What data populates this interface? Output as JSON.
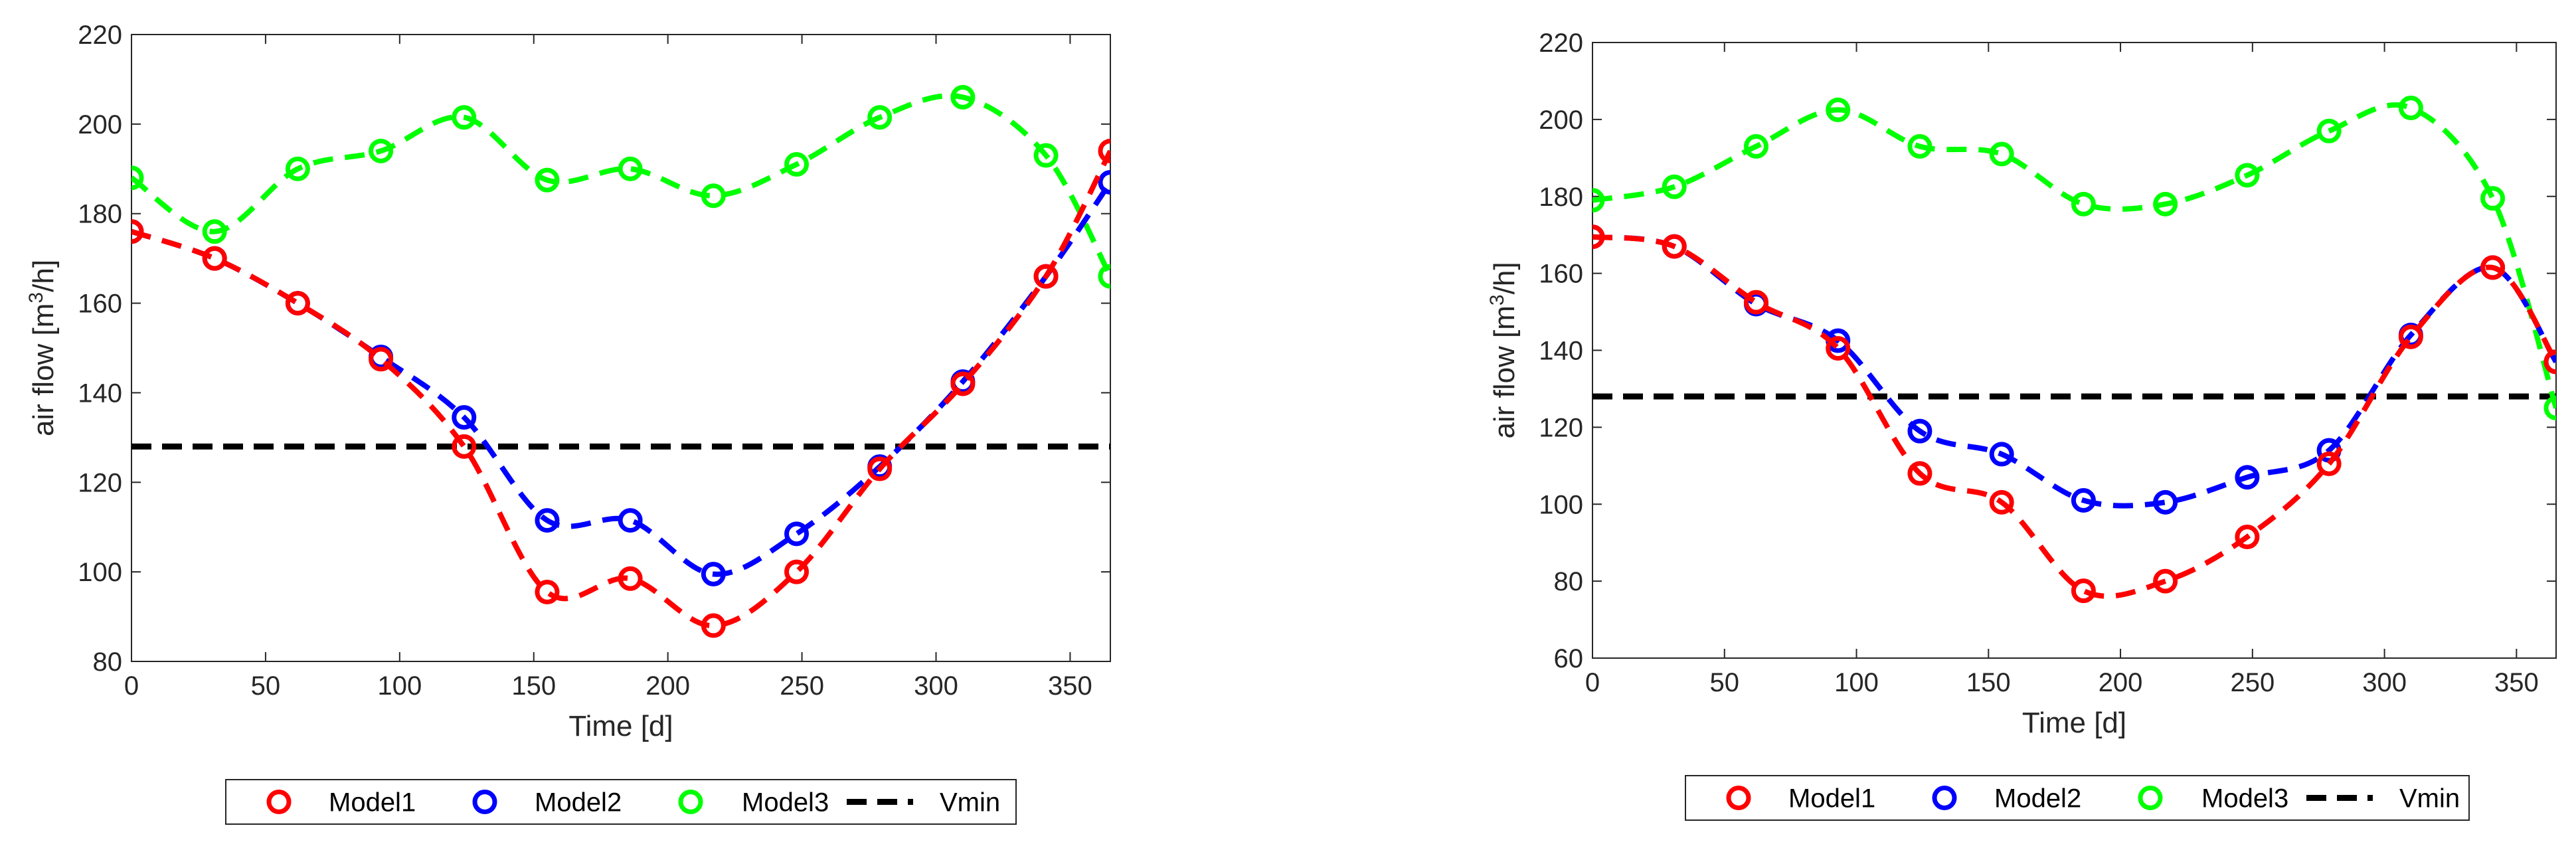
{
  "chart_data": [
    {
      "type": "line",
      "xlabel": "Time [d]",
      "ylabel": "air flow [m",
      "ylabel_sup": "3",
      "ylabel_tail": "/h]",
      "xlim": [
        0,
        365
      ],
      "ylim": [
        80,
        220
      ],
      "xticks": [
        0,
        50,
        100,
        150,
        200,
        250,
        300,
        350
      ],
      "yticks": [
        80,
        100,
        120,
        140,
        160,
        180,
        200,
        220
      ],
      "grid": false,
      "legend_position": "bottom-center",
      "series": [
        {
          "name": "Model1",
          "color": "#ff0000",
          "marker": "circle",
          "line": "dashed",
          "x": [
            0,
            31,
            62,
            93,
            124,
            155,
            186,
            217,
            248,
            279,
            310,
            341,
            365
          ],
          "y": [
            176,
            170,
            160,
            147.5,
            128,
            95.5,
            98.5,
            88,
            100,
            123,
            142,
            166,
            194
          ]
        },
        {
          "name": "Model2",
          "color": "#0000ff",
          "marker": "circle",
          "line": "dashed",
          "x": [
            0,
            31,
            62,
            93,
            124,
            155,
            186,
            217,
            248,
            279,
            310,
            341,
            365
          ],
          "y": [
            176,
            170,
            160,
            148,
            134.5,
            111.5,
            111.5,
            99.5,
            108.5,
            123.5,
            142.5,
            166,
            187
          ]
        },
        {
          "name": "Model3",
          "color": "#00ff00",
          "marker": "circle",
          "line": "dashed",
          "x": [
            0,
            31,
            62,
            93,
            124,
            155,
            186,
            217,
            248,
            279,
            310,
            341,
            365
          ],
          "y": [
            188,
            176,
            190,
            194,
            201.5,
            187.5,
            190,
            184,
            191,
            201.5,
            206,
            193,
            166
          ]
        },
        {
          "name": "Vmin",
          "color": "#000000",
          "marker": "none",
          "line": "dashed",
          "x": [
            0,
            365
          ],
          "y": [
            128,
            128
          ]
        }
      ]
    },
    {
      "type": "line",
      "xlabel": "Time [d]",
      "ylabel": "air flow [m",
      "ylabel_sup": "3",
      "ylabel_tail": "/h]",
      "xlim": [
        0,
        365
      ],
      "ylim": [
        60,
        220
      ],
      "xticks": [
        0,
        50,
        100,
        150,
        200,
        250,
        300,
        350
      ],
      "yticks": [
        60,
        80,
        100,
        120,
        140,
        160,
        180,
        200,
        220
      ],
      "grid": false,
      "legend_position": "bottom-center",
      "series": [
        {
          "name": "Model1",
          "color": "#ff0000",
          "marker": "circle",
          "line": "dashed",
          "x": [
            0,
            31,
            62,
            93,
            124,
            155,
            186,
            217,
            248,
            279,
            310,
            341,
            365
          ],
          "y": [
            169.5,
            167,
            152.5,
            140.5,
            108,
            100.5,
            77.5,
            80,
            91.5,
            110.5,
            143.5,
            161.5,
            137
          ]
        },
        {
          "name": "Model2",
          "color": "#0000ff",
          "marker": "circle",
          "line": "dashed",
          "x": [
            0,
            31,
            62,
            93,
            124,
            155,
            186,
            217,
            248,
            279,
            310,
            341,
            365
          ],
          "y": [
            169.5,
            167,
            152,
            142.5,
            119,
            113,
            101,
            100.5,
            107,
            114,
            144,
            161.5,
            137
          ]
        },
        {
          "name": "Model3",
          "color": "#00ff00",
          "marker": "circle",
          "line": "dashed",
          "x": [
            0,
            31,
            62,
            93,
            124,
            155,
            186,
            217,
            248,
            279,
            310,
            341,
            365
          ],
          "y": [
            179,
            182.5,
            193,
            202.5,
            193,
            191,
            178,
            178,
            185.5,
            197,
            203,
            179.5,
            125
          ]
        },
        {
          "name": "Vmin",
          "color": "#000000",
          "marker": "none",
          "line": "dashed",
          "x": [
            0,
            365
          ],
          "y": [
            128,
            128
          ]
        }
      ]
    }
  ]
}
